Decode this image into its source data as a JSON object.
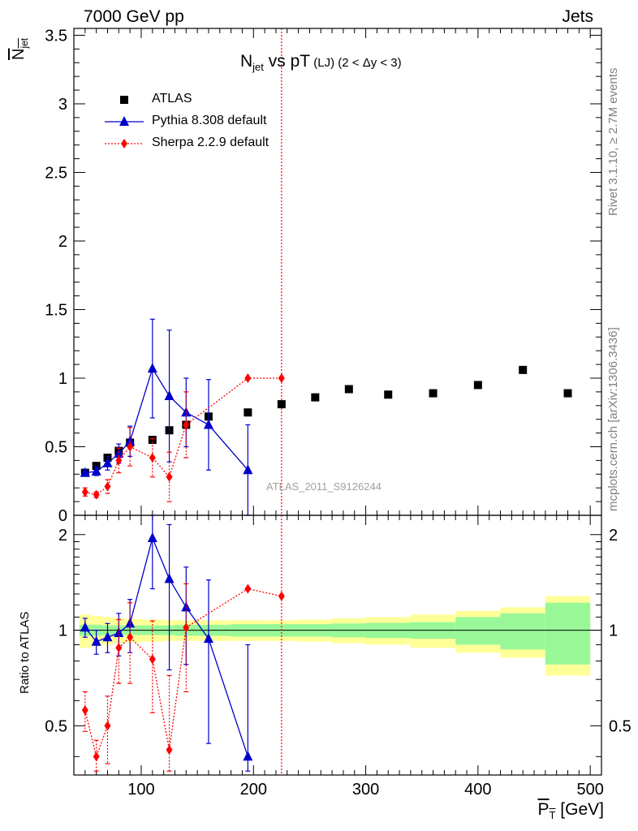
{
  "header": {
    "left": "7000 GeV pp",
    "right": "Jets"
  },
  "side_labels": {
    "rivet": "Rivet 3.1.10, ≥ 2.7M events",
    "mcplots": "mcplots.cern.ch [arXiv:1306.3436]"
  },
  "chart_data": {
    "type": "line",
    "title": {
      "prefix": "N",
      "prefix_sub": "jet",
      "middle": " vs pT",
      "small": " (LJ)",
      "cut": " (2 < Δy < 3)"
    },
    "watermark": "ATLAS_2011_S9126244",
    "xlabel": "P",
    "xlabel_sub": "T",
    "xlabel_unit": " [GeV]",
    "ylabel_main": "N",
    "ylabel_main_sub": "jet",
    "ylabel_ratio": "Ratio to ATLAS",
    "xlim": [
      40,
      510
    ],
    "ylim_main": [
      0,
      3.55
    ],
    "ylim_ratio": [
      0.35,
      2.3
    ],
    "x_ticks_major": [
      100,
      200,
      300,
      400,
      500
    ],
    "y_ticks_main": [
      0,
      0.5,
      1,
      1.5,
      2,
      2.5,
      3,
      3.5
    ],
    "y_tick_labels_main": [
      "0",
      "0.5",
      "1",
      "1.5",
      "2",
      "2.5",
      "3",
      "3.5"
    ],
    "y_ticks_ratio": [
      0.5,
      1,
      2
    ],
    "y_tick_labels_ratio": [
      "0.5",
      "1",
      "2"
    ],
    "y_minor_ratio": [
      0.4,
      0.6,
      0.7,
      0.8,
      0.9,
      1.1,
      1.2,
      1.3,
      1.4,
      1.5,
      1.6,
      1.7,
      1.8,
      1.9
    ],
    "reference_line_x": 225,
    "legend": {
      "placement": "top-left",
      "entries": [
        "ATLAS",
        "Pythia 8.308 default",
        "Sherpa 2.2.9 default"
      ]
    },
    "data": {
      "name": "ATLAS",
      "color": "#000000",
      "x": [
        50,
        60,
        70,
        80,
        90,
        110,
        125,
        140,
        160,
        195,
        225,
        255,
        285,
        320,
        360,
        400,
        440,
        480
      ],
      "xlo": [
        45,
        55,
        65,
        75,
        85,
        100,
        120,
        130,
        150,
        180,
        210,
        240,
        270,
        300,
        340,
        380,
        420,
        460
      ],
      "xhi": [
        55,
        65,
        75,
        85,
        100,
        120,
        130,
        150,
        180,
        210,
        240,
        270,
        300,
        340,
        380,
        420,
        460,
        500
      ],
      "y": [
        0.31,
        0.36,
        0.42,
        0.47,
        0.53,
        0.55,
        0.62,
        0.66,
        0.72,
        0.75,
        0.81,
        0.86,
        0.92,
        0.88,
        0.89,
        0.95,
        1.06,
        0.89
      ]
    },
    "ratio_band": {
      "stat_inner": [
        0.04,
        0.04,
        0.035,
        0.035,
        0.035,
        0.035,
        0.035,
        0.04,
        0.04,
        0.045,
        0.045,
        0.045,
        0.05,
        0.055,
        0.06,
        0.1,
        0.13,
        0.22
      ],
      "syst_outer": [
        0.12,
        0.11,
        0.1,
        0.09,
        0.085,
        0.08,
        0.075,
        0.075,
        0.075,
        0.075,
        0.075,
        0.08,
        0.09,
        0.1,
        0.12,
        0.15,
        0.18,
        0.28
      ],
      "inner_color": "#98f898",
      "outer_color": "#ffff98"
    },
    "series": [
      {
        "name": "Pythia 8.308 default",
        "color": "#0000cc",
        "marker": "triangle",
        "line": "solid",
        "x": [
          50,
          60,
          70,
          80,
          90,
          110,
          125,
          140,
          160,
          195
        ],
        "y": [
          0.31,
          0.32,
          0.38,
          0.45,
          0.54,
          1.07,
          0.87,
          0.75,
          0.66,
          0.33
        ],
        "err": [
          0.02,
          0.03,
          0.05,
          0.07,
          0.11,
          0.36,
          0.48,
          0.25,
          0.33,
          0.33
        ]
      },
      {
        "name": "Sherpa 2.2.9 default",
        "color": "#ff0000",
        "marker": "diamond",
        "line": "dotted",
        "x": [
          50,
          60,
          70,
          80,
          90,
          110,
          125,
          140,
          195,
          225
        ],
        "y": [
          0.17,
          0.15,
          0.21,
          0.4,
          0.5,
          0.42,
          0.28,
          0.66,
          1.0,
          1.0
        ],
        "err": [
          0.03,
          0.02,
          0.05,
          0.09,
          0.14,
          0.14,
          0.18,
          0.24,
          0.0,
          0.0
        ]
      }
    ],
    "ratio_series": [
      {
        "name": "Pythia 8.308 default",
        "y": [
          1.02,
          0.92,
          0.95,
          0.98,
          1.05,
          1.95,
          1.45,
          1.18,
          0.94,
          0.4
        ],
        "err": [
          0.07,
          0.08,
          0.1,
          0.15,
          0.2,
          0.6,
          0.7,
          0.4,
          0.5,
          0.5
        ]
      },
      {
        "name": "Sherpa 2.2.9 default",
        "y": [
          0.56,
          0.4,
          0.5,
          0.88,
          0.95,
          0.81,
          0.42,
          1.02,
          1.35,
          1.28
        ],
        "err": [
          0.08,
          0.05,
          0.12,
          0.2,
          0.27,
          0.26,
          0.3,
          0.38,
          0.0,
          0.0
        ]
      }
    ]
  }
}
